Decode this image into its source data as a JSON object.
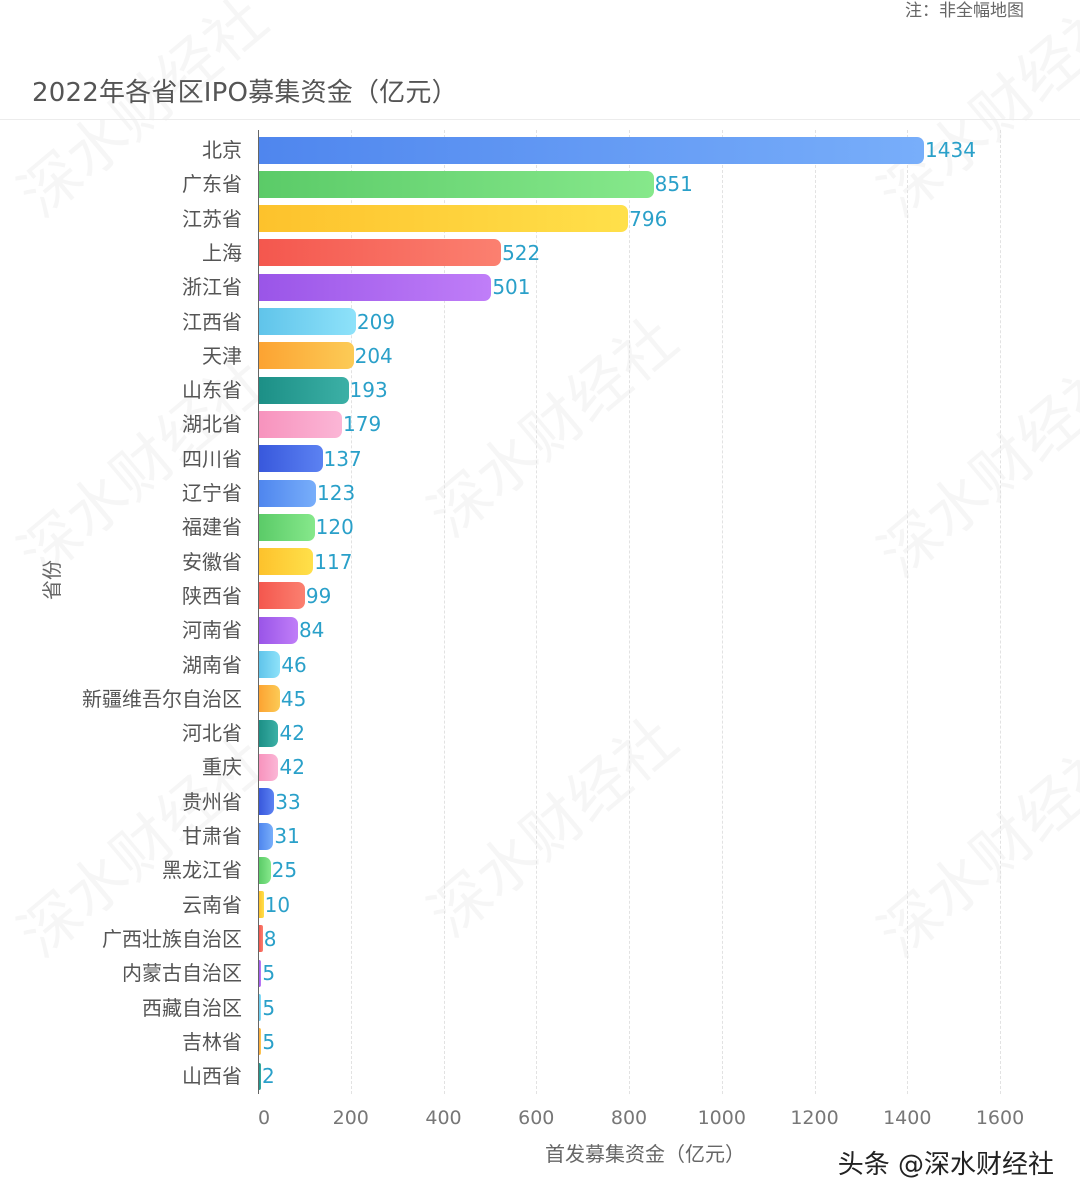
{
  "note": "注：非全幅地图",
  "watermark": "深水财经社",
  "credit": "头条 @深水财经社",
  "chart_data": {
    "type": "bar",
    "orientation": "horizontal",
    "title": "2022年各省区IPO募集资金（亿元）",
    "xlabel": "首发募集资金（亿元）",
    "ylabel": "省份",
    "xlim": [
      0,
      1600
    ],
    "xticks": [
      "0",
      "200",
      "400",
      "600",
      "800",
      "1000",
      "1200",
      "1400",
      "1600"
    ],
    "grid": "vertical dashed",
    "legend": "none",
    "categories": [
      "北京",
      "广东省",
      "江苏省",
      "上海",
      "浙江省",
      "江西省",
      "天津",
      "山东省",
      "湖北省",
      "四川省",
      "辽宁省",
      "福建省",
      "安徽省",
      "陕西省",
      "河南省",
      "湖南省",
      "新疆维吾尔自治区",
      "河北省",
      "重庆",
      "贵州省",
      "甘肃省",
      "黑龙江省",
      "云南省",
      "广西壮族自治区",
      "内蒙古自治区",
      "西藏自治区",
      "吉林省",
      "山西省"
    ],
    "values": [
      1434,
      851,
      796,
      522,
      501,
      209,
      204,
      193,
      179,
      137,
      123,
      120,
      117,
      99,
      84,
      46,
      45,
      42,
      42,
      33,
      31,
      25,
      10,
      8,
      5,
      5,
      5,
      2
    ],
    "palette": [
      [
        "#4f86ee",
        "#78aefa"
      ],
      [
        "#5bcb68",
        "#86e88b"
      ],
      [
        "#fdc22c",
        "#ffe04a"
      ],
      [
        "#f4574e",
        "#fb8070"
      ],
      [
        "#9a55e8",
        "#c07ef8"
      ],
      [
        "#60c4ea",
        "#8ee2fa"
      ],
      [
        "#fca332",
        "#fccb56"
      ],
      [
        "#1c8f86",
        "#3cb0a6"
      ],
      [
        "#f793bd",
        "#fbb6d6"
      ],
      [
        "#3858dc",
        "#5c82f2"
      ]
    ],
    "value_label_color": "#2aa0c9"
  }
}
